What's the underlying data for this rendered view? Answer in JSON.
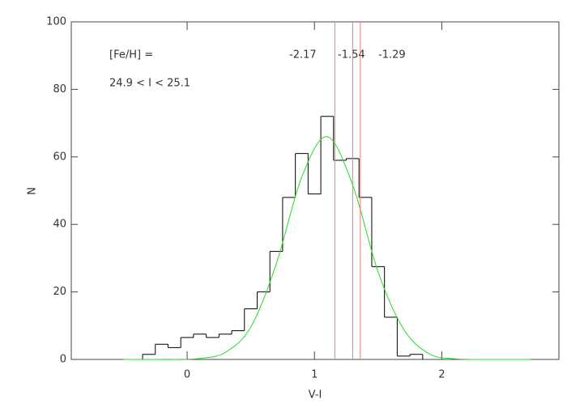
{
  "chart_data": {
    "type": "histogram",
    "xlabel": "V-I",
    "ylabel": "N",
    "annotations": [
      "[Fe/H] =",
      "-2.17",
      "-1.54",
      "-1.29",
      "24.9 < I < 25.1"
    ],
    "bins": [
      -0.35,
      -0.25,
      -0.15,
      -0.05,
      0.05,
      0.15,
      0.25,
      0.35,
      0.45,
      0.55,
      0.65,
      0.75,
      0.85,
      0.95,
      1.05,
      1.15,
      1.25,
      1.35,
      1.45,
      1.55,
      1.65,
      1.75,
      1.85
    ],
    "values": [
      1.5,
      4.5,
      3.5,
      6.5,
      7.5,
      6.5,
      7.5,
      8.5,
      15,
      20,
      32,
      48,
      61,
      49,
      72,
      59,
      59.5,
      48,
      27.5,
      12.5,
      1,
      1.5
    ],
    "color": "#000000",
    "fit": {
      "color": "#22dd22",
      "x": [
        -0.5,
        -0.3,
        -0.1,
        0.1,
        0.3,
        0.5,
        0.7,
        0.9,
        1.1,
        1.3,
        1.5,
        1.7,
        1.9,
        2.1,
        2.3,
        2.5,
        2.7
      ],
      "values": [
        0,
        0,
        0,
        0.3,
        2.1,
        9.6,
        28.3,
        54,
        66,
        51.7,
        25.9,
        9,
        1.7,
        0.2,
        0,
        0,
        0
      ]
    },
    "vlines": {
      "color": "#f07a7a",
      "x": [
        1.16,
        1.3,
        1.36
      ]
    },
    "xlim": [
      -0.91,
      2.92
    ],
    "ylim": [
      0,
      100
    ],
    "xticks": [
      0,
      1,
      2
    ],
    "yticks": [
      0,
      20,
      40,
      60,
      80,
      100
    ]
  }
}
